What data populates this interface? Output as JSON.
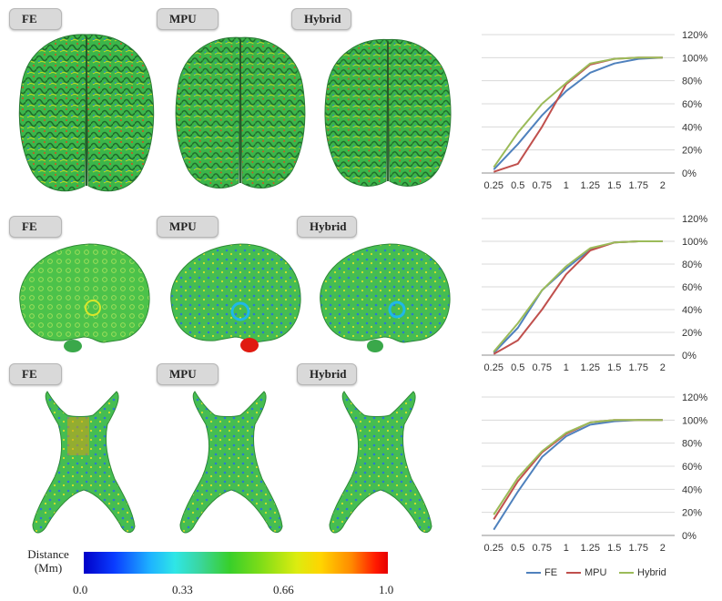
{
  "row_labels": [
    [
      "FE",
      "MPU",
      "Hybrid"
    ],
    [
      "FE",
      "MPU",
      "Hybrid"
    ],
    [
      "FE",
      "MPU",
      "Hybrid"
    ]
  ],
  "colorbar": {
    "title_line1": "Distance",
    "title_line2": "(Mm)",
    "ticks": [
      "0.0",
      "0.33",
      "0.66",
      "1.0"
    ]
  },
  "legend": [
    "FE",
    "MPU",
    "Hybrid"
  ],
  "colors": {
    "FE": "#4f81bd",
    "MPU": "#c0504d",
    "Hybrid": "#9bbb59"
  },
  "chart_data": [
    {
      "type": "line",
      "categories": [
        "0.25",
        "0.5",
        "0.75",
        "1",
        "1.25",
        "1.5",
        "1.75",
        "2"
      ],
      "y_tick_labels": [
        "0%",
        "20%",
        "40%",
        "60%",
        "80%",
        "100%",
        "120%"
      ],
      "ylim": [
        0,
        120
      ],
      "grid": true,
      "series": [
        {
          "name": "FE",
          "values": [
            3,
            25,
            50,
            71,
            87,
            95,
            99,
            100
          ]
        },
        {
          "name": "MPU",
          "values": [
            1,
            8,
            40,
            77,
            94,
            99,
            100,
            100
          ]
        },
        {
          "name": "Hybrid",
          "values": [
            5,
            35,
            60,
            78,
            95,
            99,
            100,
            100
          ]
        }
      ]
    },
    {
      "type": "line",
      "categories": [
        "0.25",
        "0.5",
        "0.75",
        "1",
        "1.25",
        "1.5",
        "1.75",
        "2"
      ],
      "y_tick_labels": [
        "0%",
        "20%",
        "40%",
        "60%",
        "80%",
        "100%",
        "120%"
      ],
      "ylim": [
        0,
        120
      ],
      "grid": true,
      "series": [
        {
          "name": "FE",
          "values": [
            2,
            24,
            57,
            76,
            93,
            99,
            100,
            100
          ]
        },
        {
          "name": "MPU",
          "values": [
            1,
            13,
            40,
            71,
            92,
            99,
            100,
            100
          ]
        },
        {
          "name": "Hybrid",
          "values": [
            3,
            28,
            57,
            78,
            94,
            99,
            100,
            100
          ]
        }
      ]
    },
    {
      "type": "line",
      "categories": [
        "0.25",
        "0.5",
        "0.75",
        "1",
        "1.25",
        "1.5",
        "1.75",
        "2"
      ],
      "y_tick_labels": [
        "0%",
        "20%",
        "40%",
        "60%",
        "80%",
        "100%",
        "120%"
      ],
      "ylim": [
        0,
        120
      ],
      "grid": true,
      "series": [
        {
          "name": "FE",
          "values": [
            5,
            38,
            68,
            86,
            96,
            99,
            100,
            100
          ]
        },
        {
          "name": "MPU",
          "values": [
            14,
            47,
            72,
            88,
            98,
            100,
            100,
            100
          ]
        },
        {
          "name": "Hybrid",
          "values": [
            18,
            50,
            73,
            89,
            98,
            100,
            100,
            100
          ]
        }
      ]
    }
  ]
}
